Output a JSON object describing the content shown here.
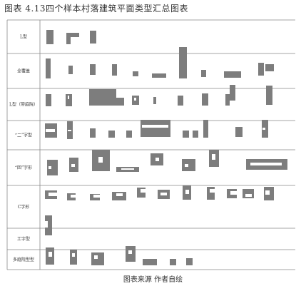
{
  "title": "图表 4.13四个样本村落建筑平面类型汇总图表",
  "caption": "图表来源 作者自绘",
  "colors": {
    "shape": "#7d7d7d",
    "line": "#888888",
    "text": "#333333"
  },
  "rows": [
    {
      "label": "L型"
    },
    {
      "label": "全覆盖"
    },
    {
      "label": "L型（带庭院）"
    },
    {
      "label": "“二”字型"
    },
    {
      "label": "“回”字形"
    },
    {
      "label": "C字形"
    },
    {
      "label": "工字型"
    },
    {
      "label": "多庭院型型"
    }
  ]
}
